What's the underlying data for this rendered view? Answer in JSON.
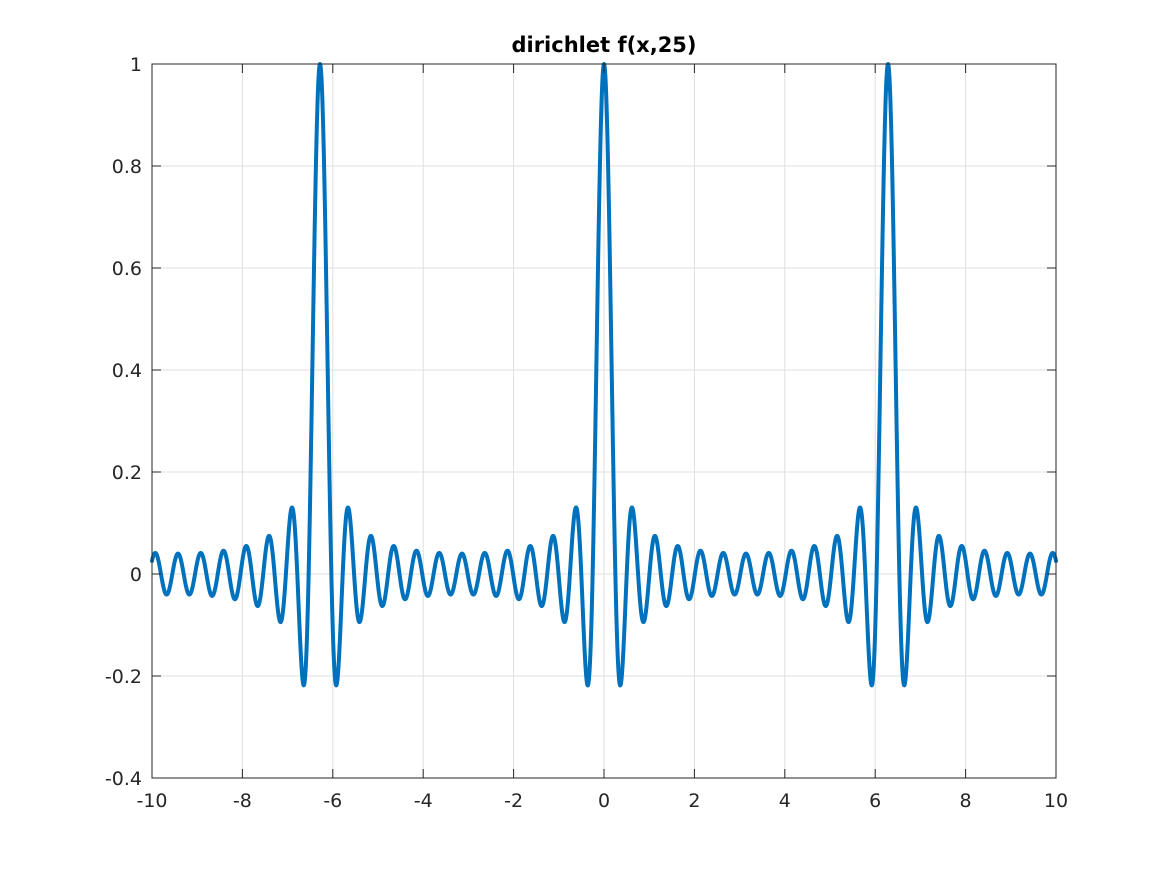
{
  "chart_data": {
    "type": "line",
    "title": "dirichlet f(x,25)",
    "xlabel": "",
    "ylabel": "",
    "xlim": [
      -10,
      10
    ],
    "ylim": [
      -0.4,
      1
    ],
    "xticks": [
      -10,
      -8,
      -6,
      -4,
      -2,
      0,
      2,
      4,
      6,
      8,
      10
    ],
    "xtick_labels": [
      "-10",
      "-8",
      "-6",
      "-4",
      "-2",
      "0",
      "2",
      "4",
      "6",
      "8",
      "10"
    ],
    "yticks": [
      -0.4,
      -0.2,
      0,
      0.2,
      0.4,
      0.6,
      0.8,
      1
    ],
    "ytick_labels": [
      "-0.4",
      "-0.2",
      "0",
      "0.2",
      "0.4",
      "0.6",
      "0.8",
      "1"
    ],
    "grid": true,
    "series": [
      {
        "function": "dirichlet(x, n) = sin(n*x/2) / (n*sin(x/2))",
        "n": 25,
        "x_range": [
          -10,
          10
        ],
        "peaks": [
          [
            -6.283,
            1
          ],
          [
            0,
            1
          ],
          [
            6.283,
            1
          ]
        ],
        "color": "#0072BD"
      }
    ]
  },
  "colors": {
    "line": "#0072BD",
    "axes": "#262626",
    "grid": "#DFDFDF",
    "background": "#FFFFFF"
  }
}
